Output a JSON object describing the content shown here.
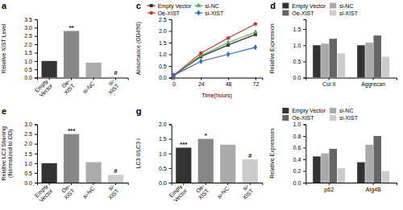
{
  "chart_data": [
    {
      "type": "bar",
      "title": "a",
      "categories": [
        "Empty\nVector",
        "Oe-\nXIST",
        "si-NC",
        "si-\nXIST"
      ],
      "values": [
        1.0,
        2.8,
        0.9,
        0.05
      ],
      "colors": [
        "#333333",
        "#888888",
        "#aaaaaa",
        "#cccccc"
      ],
      "ylabel": "Relative XIST Level",
      "annotations": [
        null,
        "**",
        null,
        "#"
      ],
      "ylim": [
        0,
        3.5
      ],
      "yticks": [
        {
          "value": 0,
          "label": "0.0"
        },
        {
          "value": 0.5,
          "label": "0.5"
        },
        {
          "value": 1.0,
          "label": "1.0"
        },
        {
          "value": 1.5,
          "label": "1.5"
        },
        {
          "value": 2.0,
          "label": "2.0"
        },
        {
          "value": 2.5,
          "label": "2.5"
        },
        {
          "value": 3.0,
          "label": "3.0"
        },
        {
          "value": 3.5,
          "label": "3.5"
        }
      ],
      "grid": false
    },
    {
      "type": "line",
      "title": "c",
      "x": [
        0,
        24,
        48,
        72
      ],
      "series": [
        {
          "name": "Empty Vector",
          "color": "#333333",
          "marker": "square",
          "values": [
            0.1,
            0.9,
            1.4,
            1.85
          ]
        },
        {
          "name": "si-NC",
          "color": "#55aa55",
          "marker": "triangle",
          "values": [
            0.1,
            0.95,
            1.5,
            1.95
          ]
        },
        {
          "name": "Oe-XIST",
          "color": "#cc3333",
          "marker": "circle",
          "values": [
            0.1,
            1.05,
            1.7,
            2.3
          ]
        },
        {
          "name": "si-XIST",
          "color": "#3366cc",
          "marker": "diamond",
          "values": [
            0.1,
            0.7,
            1.0,
            1.3
          ]
        }
      ],
      "xlabel": "Time(hours)",
      "ylabel": "Absorbance (OD490)",
      "xlim": [
        -2,
        78
      ],
      "xticks": [
        0,
        24,
        48,
        72
      ],
      "ylim": [
        0,
        2.5
      ],
      "yticks": [
        {
          "value": 0,
          "label": "0.0"
        },
        {
          "value": 0.5,
          "label": "0.5"
        },
        {
          "value": 1.0,
          "label": "1.0"
        },
        {
          "value": 1.5,
          "label": "1.5"
        },
        {
          "value": 2.0,
          "label": "2.0"
        },
        {
          "value": 2.5,
          "label": "2.5"
        }
      ],
      "legend": "top",
      "grid": false
    },
    {
      "type": "bar",
      "title": "d",
      "categories": [
        "Col II",
        "Aggrecan"
      ],
      "series": [
        {
          "name": "Empty Vector",
          "color": "#333333",
          "values": [
            1.0,
            1.0
          ]
        },
        {
          "name": "si-NC",
          "color": "#aaaaaa",
          "values": [
            1.05,
            1.08
          ]
        },
        {
          "name": "Oe-XIST",
          "color": "#666666",
          "values": [
            1.2,
            1.3
          ]
        },
        {
          "name": "si-XIST",
          "color": "#cccccc",
          "values": [
            0.75,
            0.65
          ]
        }
      ],
      "ylabel": "Relative Expression",
      "ylim": [
        0,
        1.8
      ],
      "yticks": [
        {
          "value": 0,
          "label": "0.0"
        },
        {
          "value": 0.5,
          "label": "0.5"
        },
        {
          "value": 1.0,
          "label": "1.0"
        },
        {
          "value": 1.5,
          "label": "1.5"
        }
      ],
      "legend": "top",
      "grid": false
    },
    {
      "type": "bar",
      "title": "e",
      "categories": [
        "Empty\nVector",
        "Oe-\nXIST",
        "si-NC",
        "si-\nXIST"
      ],
      "values": [
        1.0,
        2.5,
        1.05,
        0.4
      ],
      "colors": [
        "#333333",
        "#888888",
        "#aaaaaa",
        "#cccccc"
      ],
      "ylabel": "Relative LC3 Staining\n(Normalized to OD)",
      "annotations": [
        null,
        "***",
        null,
        "#"
      ],
      "ylim": [
        0,
        3.0
      ],
      "yticks": [
        {
          "value": 0,
          "label": "0.0"
        },
        {
          "value": 0.5,
          "label": "0.5"
        },
        {
          "value": 1.0,
          "label": "1.0"
        },
        {
          "value": 1.5,
          "label": "1.5"
        },
        {
          "value": 2.0,
          "label": "2.0"
        },
        {
          "value": 2.5,
          "label": "2.5"
        },
        {
          "value": 3.0,
          "label": "3.0"
        }
      ],
      "grid": false
    },
    {
      "type": "bar",
      "title": "g",
      "categories": [
        "Empty\nVector",
        "Oe-\nXIST",
        "si-NC",
        "si-\nXIST"
      ],
      "values": [
        1.2,
        1.5,
        1.3,
        0.8
      ],
      "colors": [
        "#333333",
        "#888888",
        "#aaaaaa",
        "#cccccc"
      ],
      "ylabel": "LC3 II/LC3 I",
      "annotations": [
        "***",
        "*",
        null,
        "#"
      ],
      "ylim": [
        0,
        2.0
      ],
      "yticks": [
        {
          "value": 0,
          "label": "0.0"
        },
        {
          "value": 0.5,
          "label": "0.5"
        },
        {
          "value": 1.0,
          "label": "1.0"
        },
        {
          "value": 1.5,
          "label": "1.5"
        },
        {
          "value": 2.0,
          "label": "2.0"
        }
      ],
      "grid": false
    },
    {
      "type": "bar",
      "categories": [
        "p62",
        "Atg4B"
      ],
      "series": [
        {
          "name": "Empty Vector",
          "color": "#333333",
          "values": [
            0.45,
            0.35
          ]
        },
        {
          "name": "si-NC",
          "color": "#aaaaaa",
          "values": [
            0.5,
            0.65
          ]
        },
        {
          "name": "Oe-XIST",
          "color": "#666666",
          "values": [
            0.58,
            0.8
          ]
        },
        {
          "name": "si-XIST",
          "color": "#cccccc",
          "values": [
            0.25,
            0.2
          ]
        }
      ],
      "ylabel": "Relative Expression",
      "ylim": [
        0,
        1.0
      ],
      "yticks": [
        {
          "value": 0,
          "label": "0.0"
        },
        {
          "value": 0.2,
          "label": "0.2"
        },
        {
          "value": 0.4,
          "label": "0.4"
        },
        {
          "value": 0.6,
          "label": "0.6"
        },
        {
          "value": 0.8,
          "label": "0.8"
        },
        {
          "value": 1.0,
          "label": "1.0"
        }
      ],
      "legend": "top",
      "grid": false
    }
  ]
}
